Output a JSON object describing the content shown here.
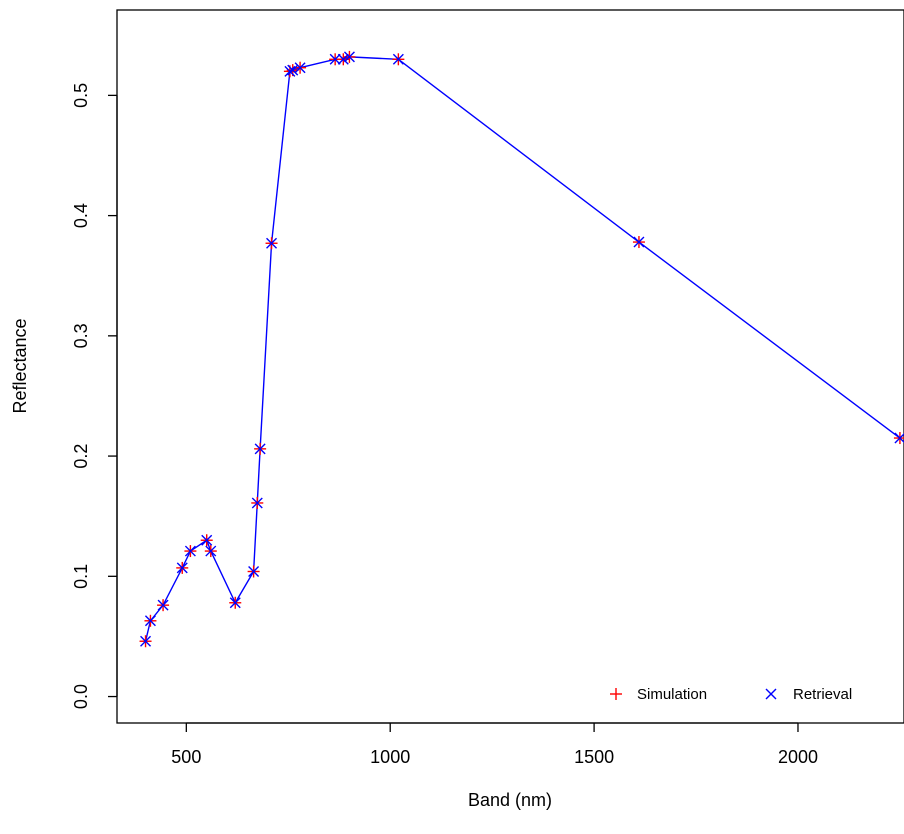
{
  "chart_data": {
    "type": "line",
    "title": "",
    "xlabel": "Band (nm)",
    "ylabel": "Reflectance",
    "xlim": [
      330,
      2260
    ],
    "ylim": [
      -0.022,
      0.571
    ],
    "x_ticks": [
      500,
      1000,
      1500,
      2000
    ],
    "y_ticks": [
      0.0,
      0.1,
      0.2,
      0.3,
      0.4,
      0.5
    ],
    "x_tick_labels": [
      "500",
      "1000",
      "1500",
      "2000"
    ],
    "y_tick_labels": [
      "0.0",
      "0.1",
      "0.2",
      "0.3",
      "0.4",
      "0.5"
    ],
    "grid": false,
    "legend_position": "bottom-right",
    "x": [
      400,
      412,
      443,
      490,
      510,
      550,
      560,
      620,
      665,
      674,
      681,
      709,
      754,
      761,
      779,
      865,
      885,
      900,
      1020,
      1610,
      2250
    ],
    "series": [
      {
        "name": "Simulation",
        "marker": "+",
        "color": "#ff0000",
        "values": [
          0.046,
          0.063,
          0.076,
          0.107,
          0.121,
          0.13,
          0.121,
          0.078,
          0.104,
          0.161,
          0.206,
          0.377,
          0.52,
          0.521,
          0.523,
          0.53,
          0.53,
          0.532,
          0.53,
          0.378,
          0.215
        ]
      },
      {
        "name": "Retrieval",
        "marker": "x",
        "color": "#0000ff",
        "line": true,
        "values": [
          0.046,
          0.063,
          0.076,
          0.107,
          0.121,
          0.13,
          0.121,
          0.078,
          0.104,
          0.161,
          0.206,
          0.377,
          0.52,
          0.521,
          0.523,
          0.53,
          0.53,
          0.532,
          0.53,
          0.378,
          0.215
        ]
      }
    ]
  }
}
